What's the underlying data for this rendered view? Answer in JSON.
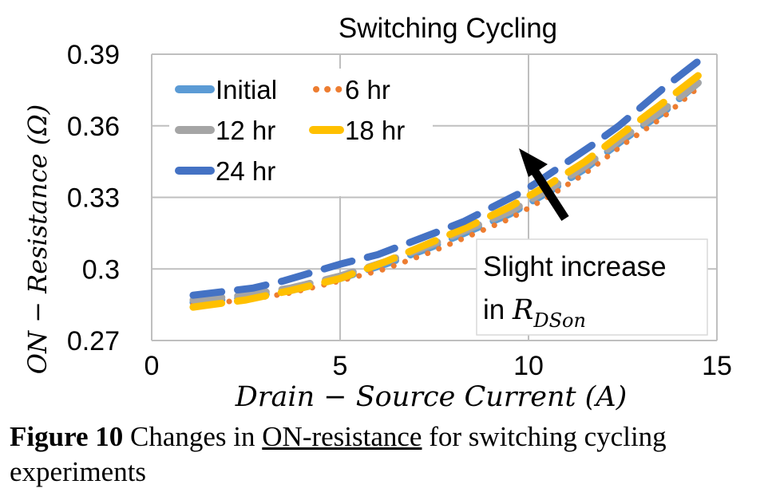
{
  "chart_data": {
    "type": "line",
    "title": "Switching Cycling",
    "xlabel": "Drain − Source Current (A)",
    "ylabel": "ON − Resistance (Ω)",
    "xlim": [
      0,
      15
    ],
    "ylim": [
      0.27,
      0.39
    ],
    "xticks": [
      "0",
      "5",
      "10",
      "15"
    ],
    "yticks": [
      "0.27",
      "0.3",
      "0.33",
      "0.36",
      "0.39"
    ],
    "grid": true,
    "legend_position": "top-left",
    "series": [
      {
        "name": "Initial",
        "color": "#5b9bd5",
        "style": "dash",
        "x": [
          1.1,
          2.5,
          3.7,
          5.0,
          6.2,
          7.4,
          8.3,
          9.5,
          10.5,
          11.5,
          12.5,
          13.6,
          14.5
        ],
        "y": [
          0.286,
          0.288,
          0.291,
          0.296,
          0.302,
          0.309,
          0.315,
          0.323,
          0.332,
          0.342,
          0.354,
          0.366,
          0.378
        ]
      },
      {
        "name": "6 hr",
        "color": "#ed7d31",
        "style": "dot",
        "x": [
          1.1,
          2.5,
          3.7,
          5.0,
          6.2,
          7.4,
          8.3,
          9.5,
          10.5,
          11.5,
          12.5,
          13.6,
          14.5
        ],
        "y": [
          0.285,
          0.287,
          0.29,
          0.295,
          0.3,
          0.307,
          0.313,
          0.321,
          0.33,
          0.34,
          0.352,
          0.364,
          0.376
        ]
      },
      {
        "name": "12 hr",
        "color": "#a5a5a5",
        "style": "dash",
        "x": [
          1.1,
          2.5,
          3.7,
          5.0,
          6.2,
          7.4,
          8.3,
          9.5,
          10.5,
          11.5,
          12.5,
          13.6,
          14.5
        ],
        "y": [
          0.287,
          0.289,
          0.292,
          0.297,
          0.303,
          0.31,
          0.316,
          0.324,
          0.333,
          0.343,
          0.355,
          0.367,
          0.378
        ]
      },
      {
        "name": "18 hr",
        "color": "#ffc000",
        "style": "dash",
        "x": [
          1.1,
          2.5,
          3.7,
          5.0,
          6.2,
          7.4,
          8.3,
          9.5,
          10.5,
          11.5,
          12.5,
          13.6,
          14.5
        ],
        "y": [
          0.284,
          0.287,
          0.291,
          0.296,
          0.303,
          0.311,
          0.317,
          0.326,
          0.335,
          0.345,
          0.357,
          0.37,
          0.381
        ]
      },
      {
        "name": "24 hr",
        "color": "#4472c4",
        "style": "dash",
        "x": [
          1.1,
          2.7,
          3.5,
          5.0,
          6.0,
          7.5,
          8.3,
          9.8,
          10.2,
          11.7,
          12.4,
          13.6,
          14.5
        ],
        "y": [
          0.289,
          0.292,
          0.295,
          0.302,
          0.306,
          0.315,
          0.32,
          0.332,
          0.336,
          0.352,
          0.36,
          0.376,
          0.387
        ]
      }
    ],
    "annotation": {
      "text_line1": "Slight increase",
      "text_line2_prefix": "in ",
      "symbol_main": "R",
      "symbol_sub": "DSon"
    }
  },
  "caption": {
    "figure_number": "Figure 10",
    "text_before": " Changes in ",
    "text_underlined": "ON-resistance",
    "text_after": " for switching cycling experiments"
  }
}
